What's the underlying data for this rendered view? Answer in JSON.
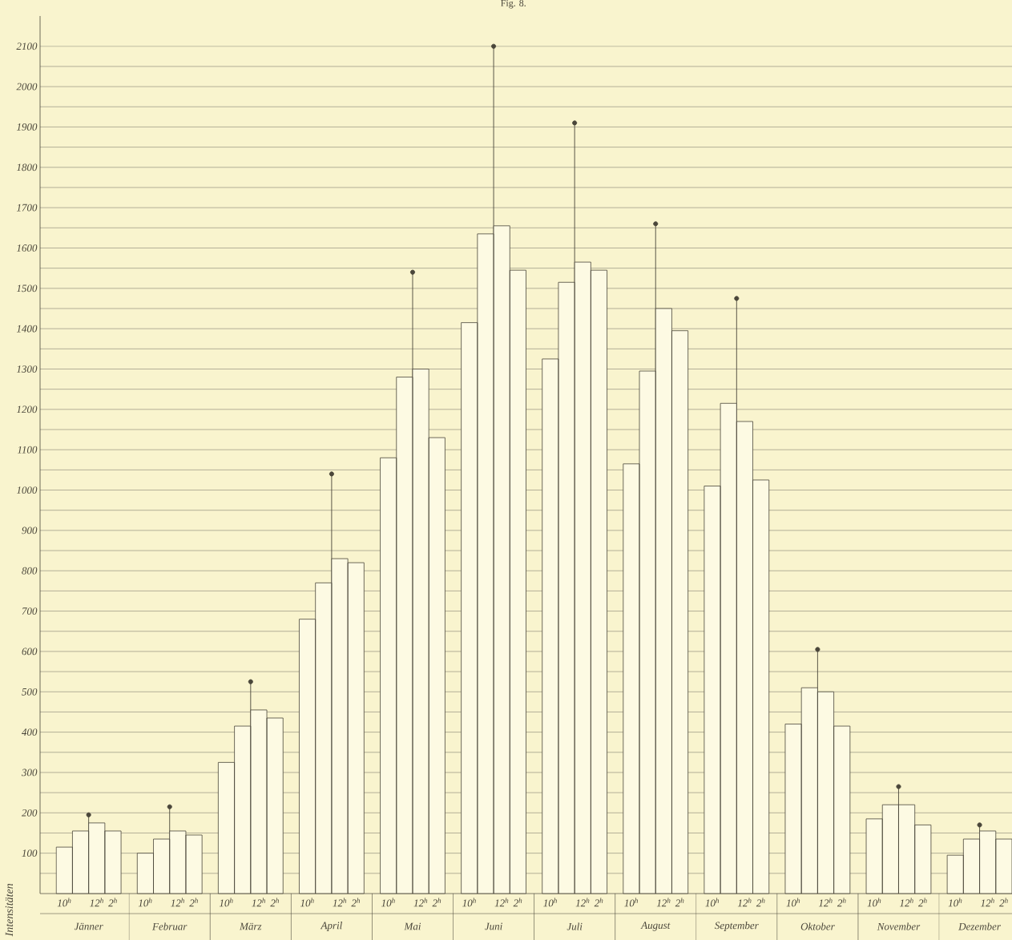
{
  "chart_data": {
    "type": "bar",
    "title": "Fig. 8.",
    "ylabel": "Intensitäten",
    "categories": [
      "10$^{h}$",
      null,
      "12$^{h}$",
      "2$^{h}$",
      "10$^{h}$",
      null,
      "12$^{h}$",
      "2$^{h}$",
      "10$^{h}$",
      null,
      "12$^{h}$",
      "2$^{h}$",
      "10$^{h}$",
      null,
      "12$^{h}$",
      "2$^{h}$",
      "10$^{h}$",
      null,
      "12$^{h}$",
      "2$^{h}$",
      "10$^{h}$",
      null,
      "12$^{h}$",
      "2$^{h}$",
      "10$^{h}$",
      null,
      "12$^{h}$",
      "2$^{h}$",
      "10$^{h}$",
      null,
      "12$^{h}$",
      "2$^{h}$",
      "10$^{h}$",
      null,
      "12$^{h}$",
      "2$^{h}$",
      "10$^{h}$",
      null,
      "12$^{h}$",
      "2$^{h}$",
      "10$^{h}$",
      null,
      "12$^{h}$",
      "2$^{h}$",
      "10$^{h}$",
      null,
      "12$^{h}$",
      "2$^{h}$"
    ],
    "series": [
      {
        "type": "lollipop",
        "color": "#4a463a",
        "values": [
          null,
          null,
          195,
          null,
          null,
          null,
          215,
          null,
          null,
          null,
          525,
          null,
          null,
          null,
          1040,
          null,
          null,
          null,
          1540,
          null,
          null,
          null,
          2100,
          null,
          null,
          null,
          1910,
          null,
          null,
          null,
          1660,
          null,
          null,
          null,
          1475,
          null,
          null,
          null,
          605,
          null,
          null,
          null,
          265,
          null,
          null,
          null,
          170,
          null
        ]
      },
      {
        "color": "#fdfae3",
        "values": [
          115,
          155,
          175,
          155,
          100,
          135,
          155,
          145,
          325,
          415,
          455,
          435,
          680,
          770,
          830,
          820,
          1080,
          1280,
          1300,
          1130,
          1415,
          1635,
          1655,
          1545,
          1325,
          1515,
          1565,
          1545,
          1065,
          1295,
          1450,
          1395,
          1010,
          1215,
          1170,
          1025,
          420,
          510,
          500,
          415,
          185,
          220,
          220,
          170,
          95,
          135,
          155,
          135
        ]
      }
    ],
    "marker": "circle",
    "grid": "y",
    "ylim": [
      0,
      2175
    ],
    "yticks": [
      {
        "value": 50,
        "label": null
      },
      100,
      {
        "value": 150,
        "label": null
      },
      200,
      {
        "value": 250,
        "label": null
      },
      300,
      {
        "value": 350,
        "label": null
      },
      400,
      {
        "value": 450,
        "label": null
      },
      500,
      {
        "value": 550,
        "label": null
      },
      600,
      {
        "value": 650,
        "label": null
      },
      700,
      {
        "value": 750,
        "label": null
      },
      800,
      {
        "value": 850,
        "label": null
      },
      900,
      {
        "value": 950,
        "label": null
      },
      1000,
      {
        "value": 1050,
        "label": null
      },
      1100,
      {
        "value": 1150,
        "label": null
      },
      1200,
      {
        "value": 1250,
        "label": null
      },
      1300,
      {
        "value": 1350,
        "label": null
      },
      1400,
      {
        "value": 1450,
        "label": null
      },
      1500,
      {
        "value": 1550,
        "label": null
      },
      1600,
      {
        "value": 1650,
        "label": null
      },
      1700,
      {
        "value": 1750,
        "label": null
      },
      1800,
      {
        "value": 1850,
        "label": null
      },
      1900,
      {
        "value": 1950,
        "label": null
      },
      2000,
      {
        "value": 2050,
        "label": null
      },
      2100
    ],
    "annotations": [
      "Jänner",
      "Februar",
      "März",
      "April",
      "Mai",
      "Juni",
      "Juli",
      "August",
      "September",
      "Oktober",
      "November",
      "Dezember"
    ]
  }
}
